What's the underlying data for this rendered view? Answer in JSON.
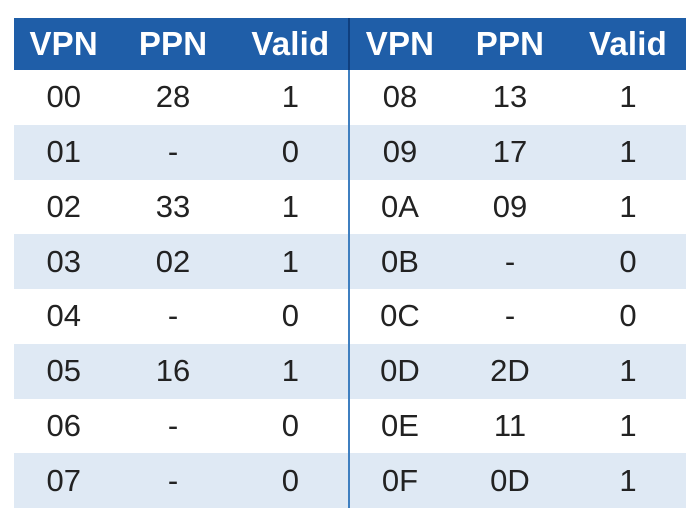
{
  "table": {
    "left_headers": [
      "VPN",
      "PPN",
      "Valid"
    ],
    "right_headers": [
      "VPN",
      "PPN",
      "Valid"
    ],
    "rows": [
      {
        "left": [
          "00",
          "28",
          "1"
        ],
        "right": [
          "08",
          "13",
          "1"
        ]
      },
      {
        "left": [
          "01",
          "-",
          "0"
        ],
        "right": [
          "09",
          "17",
          "1"
        ]
      },
      {
        "left": [
          "02",
          "33",
          "1"
        ],
        "right": [
          "0A",
          "09",
          "1"
        ]
      },
      {
        "left": [
          "03",
          "02",
          "1"
        ],
        "right": [
          "0B",
          "-",
          "0"
        ]
      },
      {
        "left": [
          "04",
          "-",
          "0"
        ],
        "right": [
          "0C",
          "-",
          "0"
        ]
      },
      {
        "left": [
          "05",
          "16",
          "1"
        ],
        "right": [
          "0D",
          "2D",
          "1"
        ]
      },
      {
        "left": [
          "06",
          "-",
          "0"
        ],
        "right": [
          "0E",
          "11",
          "1"
        ]
      },
      {
        "left": [
          "07",
          "-",
          "0"
        ],
        "right": [
          "0F",
          "0D",
          "1"
        ]
      }
    ]
  },
  "colors": {
    "header_background": "#1f5ea8",
    "header_text": "#ffffff",
    "stripe_row": "#dfe9f4",
    "divider": "#3f7fc0",
    "cell_text": "#222222"
  }
}
